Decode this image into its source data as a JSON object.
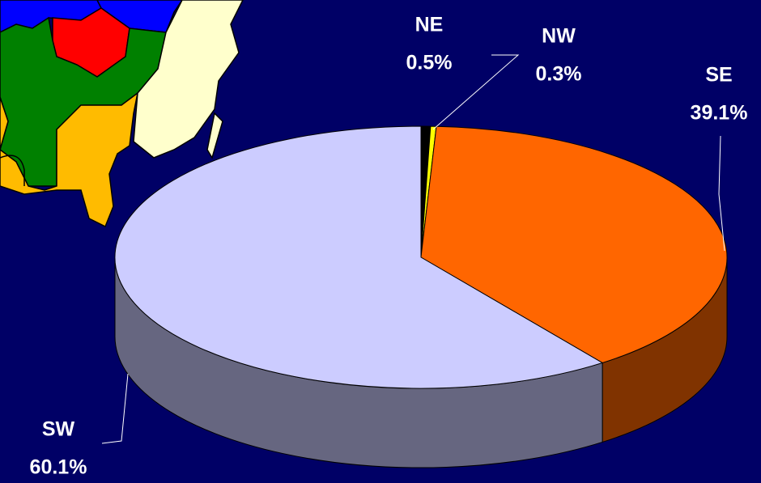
{
  "chart_data": {
    "type": "pie",
    "categories": [
      "NE",
      "NW",
      "SE",
      "SW"
    ],
    "values": [
      0.5,
      0.3,
      39.1,
      60.1
    ],
    "value_labels": [
      "0.5%",
      "0.3%",
      "39.1%",
      "60.1%"
    ],
    "colors": [
      "#000000",
      "#ffff00",
      "#ff6600",
      "#ccccff"
    ],
    "side_colors": [
      "#000000",
      "#808000",
      "#803300",
      "#666680"
    ]
  }
}
